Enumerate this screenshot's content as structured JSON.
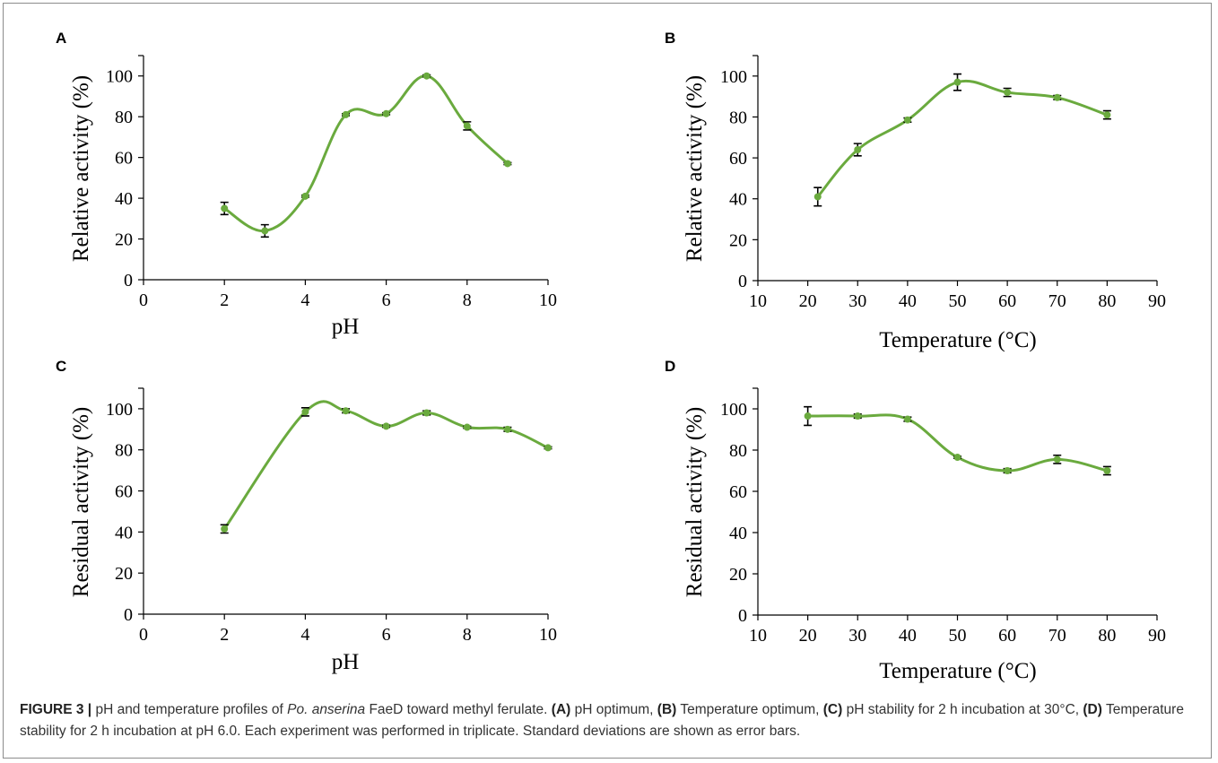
{
  "caption": {
    "figure_label": "FIGURE 3 |",
    "part1": " pH and temperature profiles of ",
    "organism": "Po. anserina",
    "part2": " FaeD toward methyl ferulate. ",
    "a_label": "(A)",
    "a_text": " pH optimum, ",
    "b_label": "(B)",
    "b_text": " Temperature optimum, ",
    "c_label": "(C)",
    "c_text": " pH stability for 2 h incubation at 30°C, ",
    "d_label": "(D)",
    "d_text": " Temperature stability for 2 h incubation at pH 6.0. Each experiment was performed in triplicate. Standard deviations are shown as error bars."
  },
  "colors": {
    "series": "#6aaa3e",
    "error_bars": "#000000"
  },
  "chart_data": [
    {
      "panel": "A",
      "type": "scatter",
      "line": "smooth",
      "title": "",
      "xlabel": "pH",
      "ylabel": "Relative activity (%)",
      "xlim": [
        0,
        10
      ],
      "xticks": [
        0,
        2,
        4,
        6,
        8,
        10
      ],
      "ylim": [
        0,
        110
      ],
      "yticks": [
        0,
        20,
        40,
        60,
        80,
        100
      ],
      "grid": false,
      "series": [
        {
          "x": [
            2,
            3,
            4,
            5,
            6,
            7,
            8,
            9
          ],
          "y": [
            35,
            24,
            41,
            81,
            81.5,
            100,
            75.5,
            57
          ],
          "err": [
            3,
            3,
            0.5,
            0.5,
            0.5,
            0.5,
            2,
            0.5
          ]
        }
      ]
    },
    {
      "panel": "B",
      "type": "scatter",
      "line": "smooth",
      "title": "",
      "xlabel": "Temperature (°C)",
      "ylabel": "Relative activity (%)",
      "xlim": [
        10,
        90
      ],
      "xticks": [
        10,
        20,
        30,
        40,
        50,
        60,
        70,
        80,
        90
      ],
      "ylim": [
        0,
        110
      ],
      "yticks": [
        0,
        20,
        40,
        60,
        80,
        100
      ],
      "grid": false,
      "series": [
        {
          "x": [
            22,
            30,
            40,
            50,
            60,
            70,
            80
          ],
          "y": [
            41,
            64,
            78.5,
            97,
            92,
            89.5,
            81
          ],
          "err": [
            4.5,
            3,
            1,
            4,
            2,
            1,
            2
          ]
        }
      ]
    },
    {
      "panel": "C",
      "type": "scatter",
      "line": "smooth",
      "title": "",
      "xlabel": "pH",
      "ylabel": "Residual activity (%)",
      "xlim": [
        0,
        10
      ],
      "xticks": [
        0,
        2,
        4,
        6,
        8,
        10
      ],
      "ylim": [
        0,
        110
      ],
      "yticks": [
        0,
        20,
        40,
        60,
        80,
        100
      ],
      "grid": false,
      "series": [
        {
          "x": [
            2,
            4,
            5,
            6,
            7,
            8,
            9,
            10
          ],
          "y": [
            41.5,
            98.5,
            99,
            91.5,
            98,
            91,
            90,
            81
          ],
          "err": [
            2,
            2,
            1,
            0.5,
            1,
            0.5,
            1,
            0.5
          ]
        }
      ]
    },
    {
      "panel": "D",
      "type": "scatter",
      "line": "smooth",
      "title": "",
      "xlabel": "Temperature (°C)",
      "ylabel": "Residual activity (%)",
      "xlim": [
        10,
        90
      ],
      "xticks": [
        10,
        20,
        30,
        40,
        50,
        60,
        70,
        80,
        90
      ],
      "ylim": [
        0,
        110
      ],
      "yticks": [
        0,
        20,
        40,
        60,
        80,
        100
      ],
      "grid": false,
      "series": [
        {
          "x": [
            20,
            30,
            40,
            50,
            60,
            70,
            80
          ],
          "y": [
            96.5,
            96.5,
            95,
            76.5,
            70,
            75.5,
            70
          ],
          "err": [
            4.5,
            1,
            1,
            0.5,
            1,
            2,
            2
          ]
        }
      ]
    }
  ]
}
